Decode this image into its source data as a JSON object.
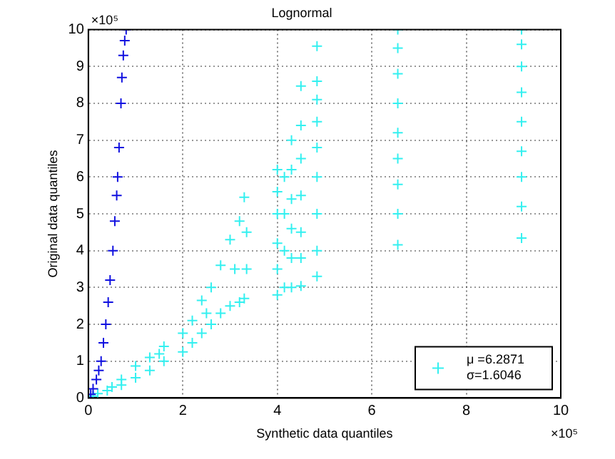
{
  "chart_data": {
    "type": "scatter",
    "title": "Lognormal",
    "xlabel": "Synthetic data quantiles",
    "ylabel": "Original data quantiles",
    "annotations": [
      "×10⁵",
      "×10⁵"
    ],
    "xlim": [
      0,
      10
    ],
    "xticks": [
      0,
      2,
      4,
      6,
      8,
      10
    ],
    "ylim": [
      0,
      10
    ],
    "yticks": [
      0,
      1,
      2,
      3,
      4,
      5,
      6,
      7,
      8,
      9,
      10
    ],
    "grid": true,
    "legend": "bottom right",
    "marker": "cross",
    "series": [
      {
        "color": "#1010e0",
        "x": [
          0,
          0.05,
          0.1,
          0.17,
          0.22,
          0.27,
          0.32,
          0.37,
          0.42,
          0.46,
          0.52,
          0.56,
          0.6,
          0.62,
          0.65,
          0.69,
          0.71,
          0.74,
          0.77,
          0.8
        ],
        "values": [
          0,
          0.1,
          0.25,
          0.5,
          0.75,
          1,
          1.5,
          2,
          2.6,
          3.2,
          4,
          4.8,
          5.5,
          6,
          6.8,
          8,
          8.7,
          9.3,
          9.7,
          10
        ]
      },
      {
        "name": "μ =6.2871\nσ=1.6046",
        "color": "#33f0f0",
        "x": [
          0.1,
          0.2,
          0.4,
          0.5,
          0.7,
          0.7,
          1,
          1,
          1.3,
          1.3,
          1.6,
          1.6,
          2,
          2,
          2.2,
          2.2,
          2.4,
          2.4,
          2.6,
          2.6,
          2.8,
          2.8,
          3,
          3,
          3.2,
          3.2,
          3.3,
          3.3,
          3.35,
          3.35,
          1.5,
          2.5,
          3.1,
          4,
          4,
          4,
          4,
          4,
          4,
          4.15,
          4.15,
          4.15,
          4.15,
          4.3,
          4.3,
          4.3,
          4.3,
          4.3,
          4.3,
          4.5,
          4.5,
          4.5,
          4.5,
          4.5,
          4.5,
          4.5,
          4.84,
          4.84,
          4.84,
          4.84,
          4.84,
          4.84,
          4.84,
          4.84,
          4.84,
          6.55,
          6.55,
          6.55,
          6.55,
          6.55,
          6.55,
          6.55,
          6.55,
          6.55,
          9.17,
          9.17,
          9.17,
          9.17,
          9.17,
          9.17,
          9.17,
          9.17,
          9.17
        ],
        "values": [
          0.05,
          0.12,
          0.2,
          0.3,
          0.35,
          0.5,
          0.55,
          0.87,
          0.75,
          1.1,
          1,
          1.4,
          1.25,
          1.76,
          1.5,
          2.1,
          1.76,
          2.65,
          2,
          3,
          2.3,
          3.6,
          2.5,
          4.3,
          2.6,
          4.8,
          2.7,
          5.45,
          3.5,
          4.5,
          1.2,
          2.3,
          3.5,
          2.8,
          3.5,
          4.2,
          5,
          5.6,
          6.2,
          3,
          4,
          5,
          6,
          3,
          3.8,
          4.6,
          5.4,
          6.2,
          7,
          3.04,
          3.8,
          4.5,
          5.5,
          6.5,
          7.4,
          8.47,
          3.3,
          4,
          5,
          6,
          6.8,
          7.5,
          8.1,
          8.6,
          9.55,
          4.16,
          5,
          5.8,
          6.5,
          7.2,
          8,
          8.8,
          9.5,
          10,
          4.34,
          5.2,
          6,
          6.7,
          7.5,
          8.3,
          9,
          9.6,
          10
        ]
      }
    ]
  }
}
